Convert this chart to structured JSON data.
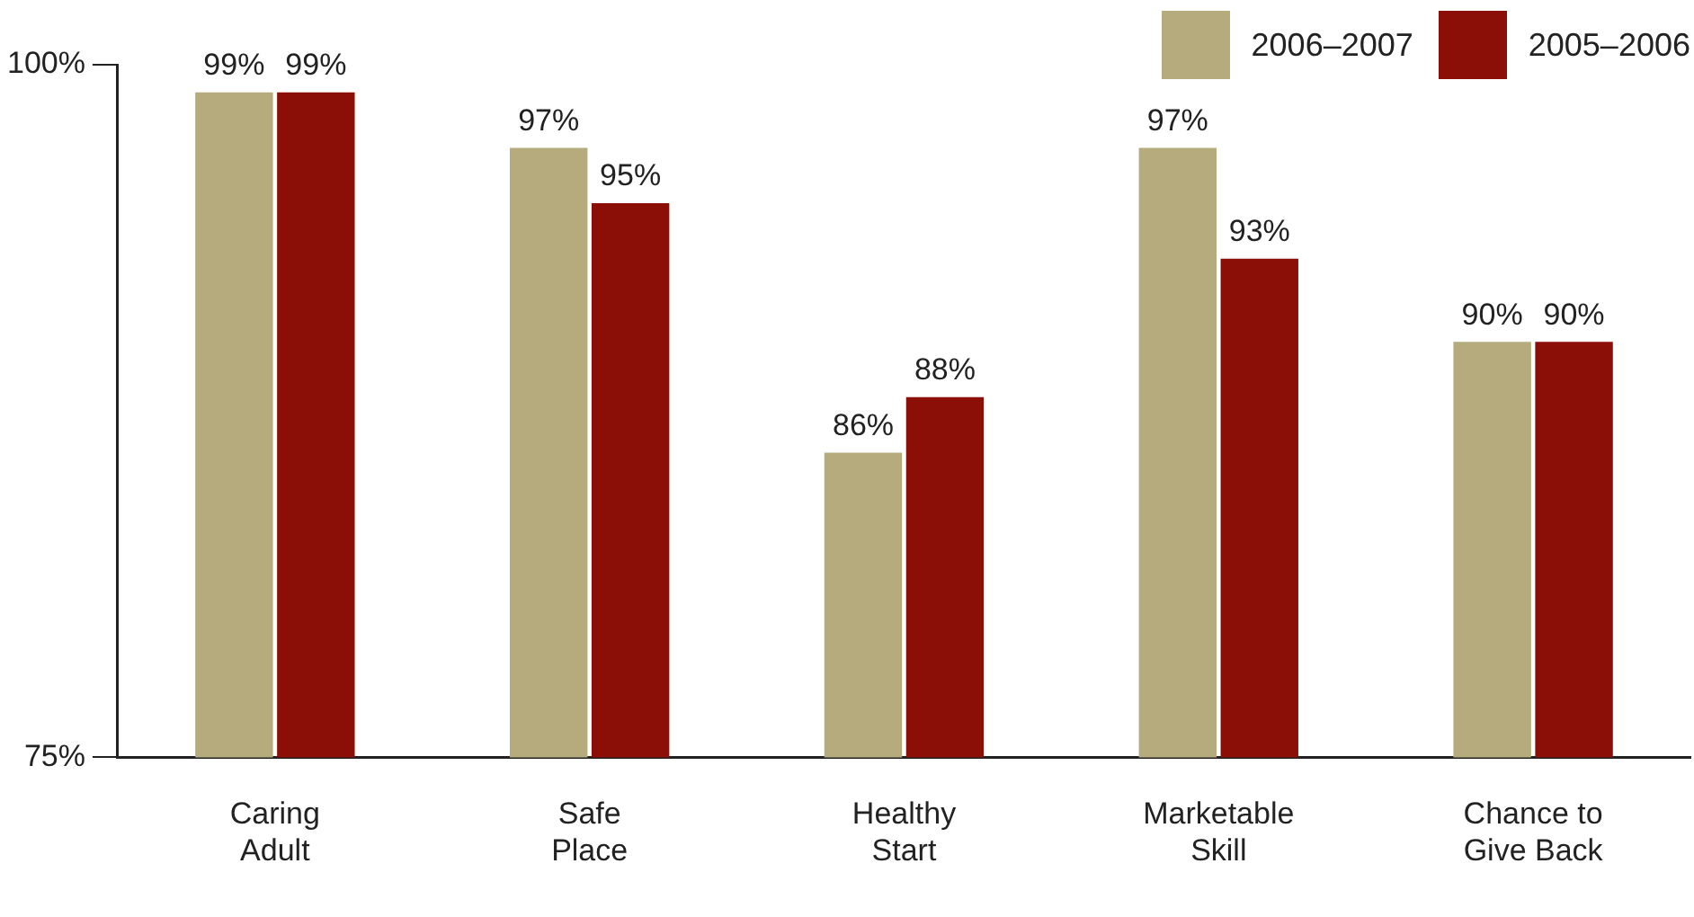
{
  "chart_data": {
    "type": "bar",
    "categories": [
      "Caring Adult",
      "Safe Place",
      "Healthy Start",
      "Marketable Skill",
      "Chance to Give Back"
    ],
    "series": [
      {
        "name": "2006–2007",
        "color": "#b5ab7c",
        "values": [
          99,
          97,
          86,
          97,
          90
        ],
        "value_labels": [
          "99%",
          "97%",
          "86%",
          "97%",
          "90%"
        ]
      },
      {
        "name": "2005–2006",
        "color": "#8b0f06",
        "values": [
          99,
          95,
          88,
          93,
          90
        ],
        "value_labels": [
          "99%",
          "95%",
          "88%",
          "93%",
          "90%"
        ]
      }
    ],
    "ylim": [
      75,
      100
    ],
    "yticks": [
      {
        "value": 75,
        "label": "75%"
      },
      {
        "value": 100,
        "label": "100%"
      }
    ],
    "grid": false,
    "legend": "top right"
  }
}
